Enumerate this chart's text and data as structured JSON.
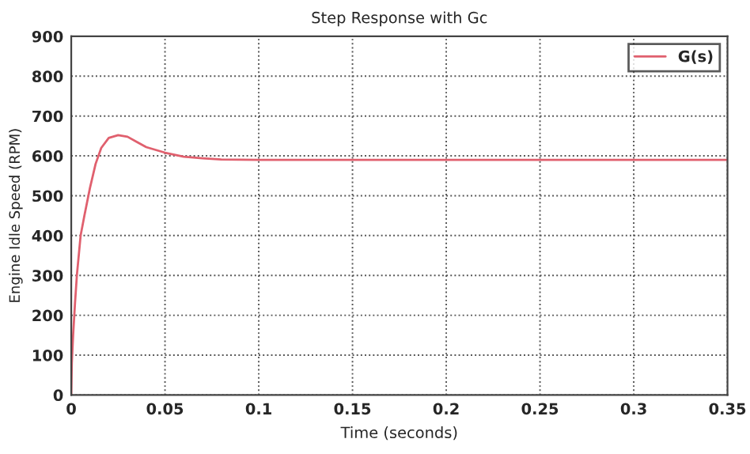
{
  "chart_data": {
    "type": "line",
    "title": "Step Response with Gc",
    "xlabel": "Time (seconds)",
    "ylabel": "Engine Idle Speed (RPM)",
    "series": [
      {
        "name": "G(s)",
        "color": "#e0606e",
        "x": [
          0,
          0.0003,
          0.001,
          0.002,
          0.003,
          0.005,
          0.007,
          0.01,
          0.013,
          0.016,
          0.02,
          0.025,
          0.03,
          0.035,
          0.04,
          0.05,
          0.06,
          0.07,
          0.08,
          0.1,
          0.15,
          0.2,
          0.25,
          0.3,
          0.35
        ],
        "values": [
          0,
          80,
          150,
          230,
          300,
          400,
          450,
          520,
          580,
          620,
          645,
          652,
          648,
          635,
          622,
          608,
          598,
          594,
          591,
          590,
          590,
          590,
          590,
          590,
          590
        ]
      }
    ],
    "xlim": [
      0,
      0.35
    ],
    "xticks": [
      0,
      0.05,
      0.1,
      0.15,
      0.2,
      0.25,
      0.3,
      0.35
    ],
    "ylim": [
      0,
      900
    ],
    "yticks": [
      0,
      100,
      200,
      300,
      400,
      500,
      600,
      700,
      800,
      900
    ],
    "grid": true,
    "legend": "top right",
    "line_style": "solid",
    "marker": "none"
  }
}
